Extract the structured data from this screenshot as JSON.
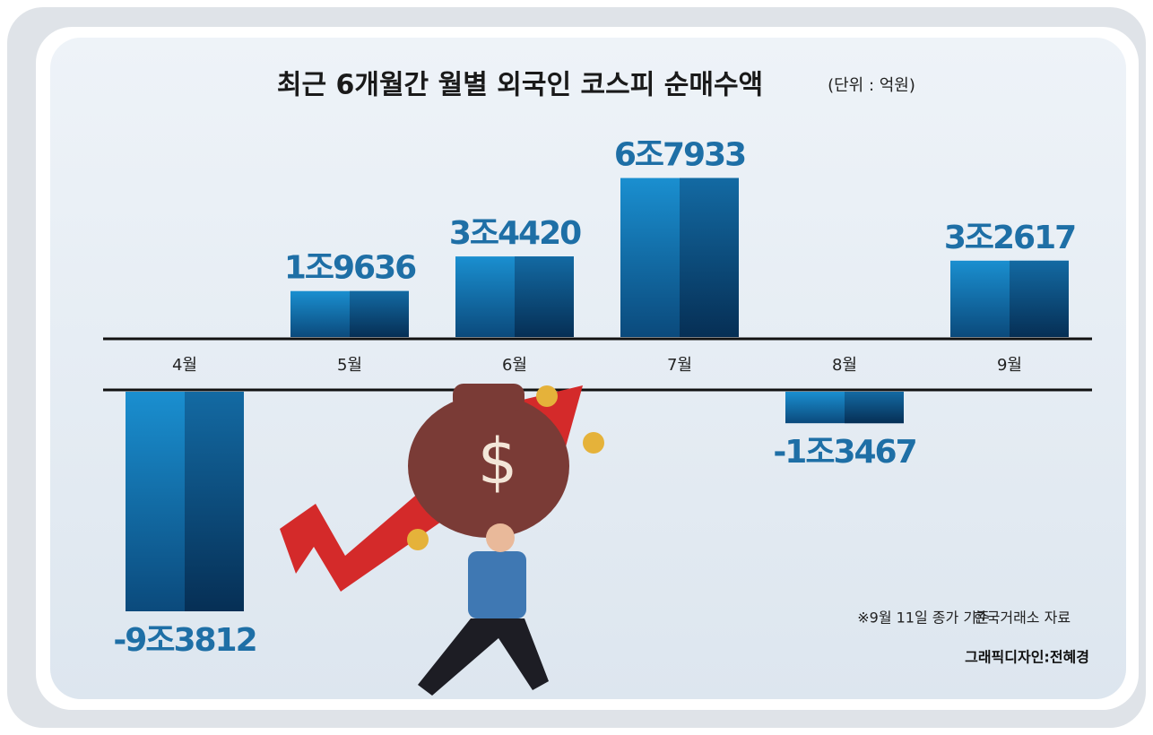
{
  "chart_data": {
    "type": "bar",
    "title": "최근 6개월간 월별 외국인 코스피 순매수액",
    "unit": "(단위 : 억원)",
    "categories": [
      "4월",
      "5월",
      "6월",
      "7월",
      "8월",
      "9월"
    ],
    "values": [
      -93812,
      19636,
      34420,
      67933,
      -13467,
      32617
    ],
    "value_labels": [
      "-9조3812",
      "1조9636",
      "3조4420",
      "6조7933",
      "-1조3467",
      "3조2617"
    ],
    "color": "#1584c4",
    "note": "※9월 11일 종가 기준",
    "source": "한국거래소 자료",
    "credit": "그래픽디자인:전혜경"
  }
}
